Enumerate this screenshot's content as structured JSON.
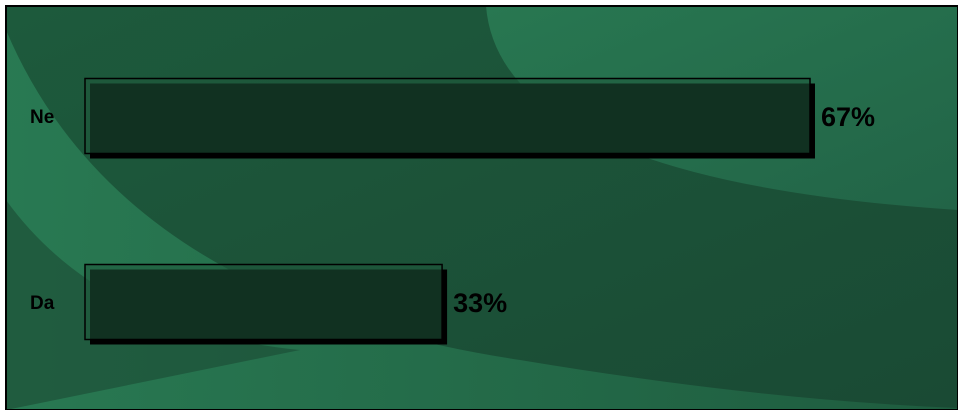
{
  "chart_data": {
    "type": "bar",
    "orientation": "horizontal",
    "title": "",
    "xlabel": "",
    "ylabel": "",
    "categories": [
      "Ne",
      "Da"
    ],
    "values": [
      67,
      33
    ],
    "value_labels": [
      "67%",
      "33%"
    ],
    "xlim": [
      0,
      67
    ],
    "grid": false,
    "legend": "none"
  },
  "colors": {
    "background_dark": "#1b4a34",
    "background_light": "#277a52",
    "bar_fill": "#1f5a3c",
    "bar_stroke": "#000000",
    "bar_shadow": "#000000"
  }
}
